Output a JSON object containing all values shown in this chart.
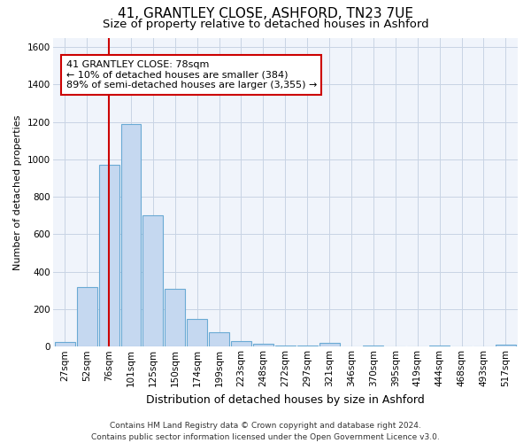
{
  "title": "41, GRANTLEY CLOSE, ASHFORD, TN23 7UE",
  "subtitle": "Size of property relative to detached houses in Ashford",
  "xlabel": "Distribution of detached houses by size in Ashford",
  "ylabel": "Number of detached properties",
  "categories": [
    "27sqm",
    "52sqm",
    "76sqm",
    "101sqm",
    "125sqm",
    "150sqm",
    "174sqm",
    "199sqm",
    "223sqm",
    "248sqm",
    "272sqm",
    "297sqm",
    "321sqm",
    "346sqm",
    "370sqm",
    "395sqm",
    "419sqm",
    "444sqm",
    "468sqm",
    "493sqm",
    "517sqm"
  ],
  "values": [
    25,
    320,
    970,
    1190,
    700,
    310,
    150,
    75,
    30,
    15,
    5,
    5,
    20,
    0,
    5,
    0,
    0,
    5,
    0,
    0,
    10
  ],
  "bar_color": "#c5d8f0",
  "bar_edge_color": "#6aaad4",
  "grid_color": "#c8d4e4",
  "background_color": "#ffffff",
  "plot_bg_color": "#f0f4fb",
  "vline_x_index": 2,
  "vline_color": "#cc0000",
  "annotation_text": "41 GRANTLEY CLOSE: 78sqm\n← 10% of detached houses are smaller (384)\n89% of semi-detached houses are larger (3,355) →",
  "annotation_box_color": "#ffffff",
  "annotation_border_color": "#cc0000",
  "ylim": [
    0,
    1650
  ],
  "yticks": [
    0,
    200,
    400,
    600,
    800,
    1000,
    1200,
    1400,
    1600
  ],
  "footnote": "Contains HM Land Registry data © Crown copyright and database right 2024.\nContains public sector information licensed under the Open Government Licence v3.0.",
  "title_fontsize": 11,
  "subtitle_fontsize": 9.5,
  "xlabel_fontsize": 9,
  "ylabel_fontsize": 8,
  "tick_fontsize": 7.5,
  "annotation_fontsize": 8,
  "footnote_fontsize": 6.5
}
